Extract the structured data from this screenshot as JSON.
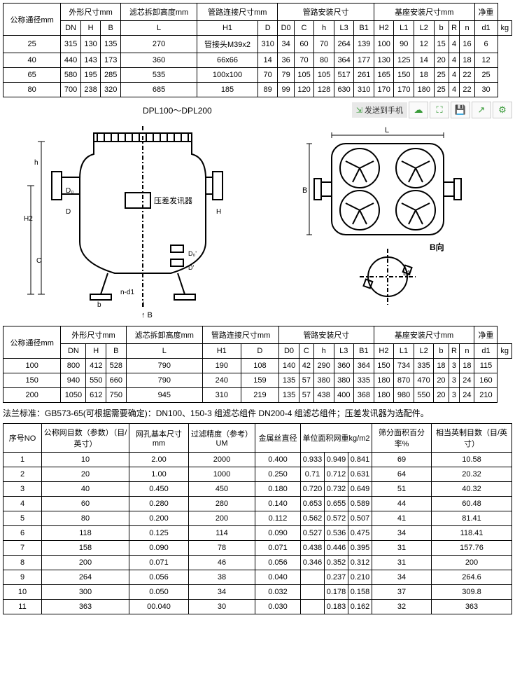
{
  "table1": {
    "headers": {
      "dn": "公称通径mm",
      "outer": "外形尺寸mm",
      "filter": "滤芯拆卸高度mm",
      "pipe_conn": "管路连接尺寸mm",
      "pipe_inst": "管路安装尺寸",
      "base_inst": "基座安装尺寸mm",
      "weight": "净重"
    },
    "cols": [
      "DN",
      "H",
      "B",
      "L",
      "H1",
      "D",
      "D0",
      "C",
      "h",
      "L3",
      "B1",
      "H2",
      "L1",
      "L2",
      "b",
      "R",
      "n",
      "d1",
      "kg"
    ],
    "rows": [
      [
        "25",
        "315",
        "130",
        "135",
        "270",
        "管接头M39x2",
        "310",
        "34",
        "60",
        "70",
        "264",
        "139",
        "100",
        "90",
        "12",
        "15",
        "4",
        "16",
        "6"
      ],
      [
        "40",
        "440",
        "143",
        "173",
        "360",
        "66x66",
        "14",
        "36",
        "70",
        "80",
        "364",
        "177",
        "130",
        "125",
        "14",
        "20",
        "4",
        "18",
        "12"
      ],
      [
        "65",
        "580",
        "195",
        "285",
        "535",
        "100x100",
        "70",
        "79",
        "105",
        "105",
        "517",
        "261",
        "165",
        "150",
        "18",
        "25",
        "4",
        "22",
        "25"
      ],
      [
        "80",
        "700",
        "238",
        "320",
        "685",
        "185",
        "89",
        "99",
        "120",
        "128",
        "630",
        "310",
        "170",
        "170",
        "180",
        "25",
        "4",
        "22",
        "30"
      ]
    ]
  },
  "caption": "DPL100～DPL200",
  "toolbar": {
    "send": "发送到手机"
  },
  "diagram": {
    "label1": "压差发讯器",
    "label2": "B向",
    "dims": [
      "H",
      "H2",
      "D",
      "C",
      "b",
      "l",
      "B",
      "D0",
      "h",
      "L",
      "n-d1",
      "L1"
    ]
  },
  "table2": {
    "headers": {
      "dn": "公称通径mm",
      "outer": "外形尺寸mm",
      "filter": "滤芯拆卸高度mm",
      "pipe_conn": "管路连接尺寸mm",
      "pipe_inst": "管路安装尺寸",
      "base_inst": "基座安装尺寸mm",
      "weight": "净重"
    },
    "cols": [
      "DN",
      "H",
      "B",
      "L",
      "H1",
      "D",
      "D0",
      "C",
      "h",
      "L3",
      "B1",
      "H2",
      "L1",
      "L2",
      "b",
      "R",
      "n",
      "d1",
      "kg"
    ],
    "rows": [
      [
        "100",
        "800",
        "412",
        "528",
        "790",
        "190",
        "108",
        "140",
        "42",
        "290",
        "360",
        "364",
        "150",
        "734",
        "335",
        "18",
        "3",
        "18",
        "115"
      ],
      [
        "150",
        "940",
        "550",
        "660",
        "790",
        "240",
        "159",
        "135",
        "57",
        "380",
        "380",
        "335",
        "180",
        "870",
        "470",
        "20",
        "3",
        "24",
        "160"
      ],
      [
        "200",
        "1050",
        "612",
        "750",
        "945",
        "310",
        "219",
        "135",
        "57",
        "438",
        "400",
        "368",
        "180",
        "980",
        "550",
        "20",
        "3",
        "24",
        "210"
      ]
    ]
  },
  "note": "法兰标准：GB573-65(可根据需要确定)：DN100、150-3 组滤芯组件 DN200-4 组滤芯组件；压差发讯器为选配件。",
  "table3": {
    "cols": [
      "序号NO",
      "公称网目数（参数）（目/英寸）",
      "网孔基本尺寸mm",
      "过滤精度（参考）UM",
      "金属丝直径",
      "单位面积网重kg/m2",
      "",
      "",
      "筛分面积百分率%",
      "相当英制目数（目/英寸）"
    ],
    "rows": [
      [
        "1",
        "10",
        "2.00",
        "2000",
        "0.400",
        "0.933",
        "0.949",
        "0.841",
        "69",
        "10.58"
      ],
      [
        "2",
        "20",
        "1.00",
        "1000",
        "0.250",
        "0.71",
        "0.712",
        "0.631",
        "64",
        "20.32"
      ],
      [
        "3",
        "40",
        "0.450",
        "450",
        "0.180",
        "0.720",
        "0.732",
        "0.649",
        "51",
        "40.32"
      ],
      [
        "4",
        "60",
        "0.280",
        "280",
        "0.140",
        "0.653",
        "0.655",
        "0.589",
        "44",
        "60.48"
      ],
      [
        "5",
        "80",
        "0.200",
        "200",
        "0.112",
        "0.562",
        "0.572",
        "0.507",
        "41",
        "81.41"
      ],
      [
        "6",
        "118",
        "0.125",
        "114",
        "0.090",
        "0.527",
        "0.536",
        "0.475",
        "34",
        "118.41"
      ],
      [
        "7",
        "158",
        "0.090",
        "78",
        "0.071",
        "0.438",
        "0.446",
        "0.395",
        "31",
        "157.76"
      ],
      [
        "8",
        "200",
        "0.071",
        "46",
        "0.056",
        "0.346",
        "0.352",
        "0.312",
        "31",
        "200"
      ],
      [
        "9",
        "264",
        "0.056",
        "38",
        "0.040",
        "",
        "0.237",
        "0.210",
        "34",
        "264.6"
      ],
      [
        "10",
        "300",
        "0.050",
        "34",
        "0.032",
        "",
        "0.178",
        "0.158",
        "37",
        "309.8"
      ],
      [
        "11",
        "363",
        "00.040",
        "30",
        "0.030",
        "",
        "0.183",
        "0.162",
        "32",
        "363"
      ]
    ]
  }
}
